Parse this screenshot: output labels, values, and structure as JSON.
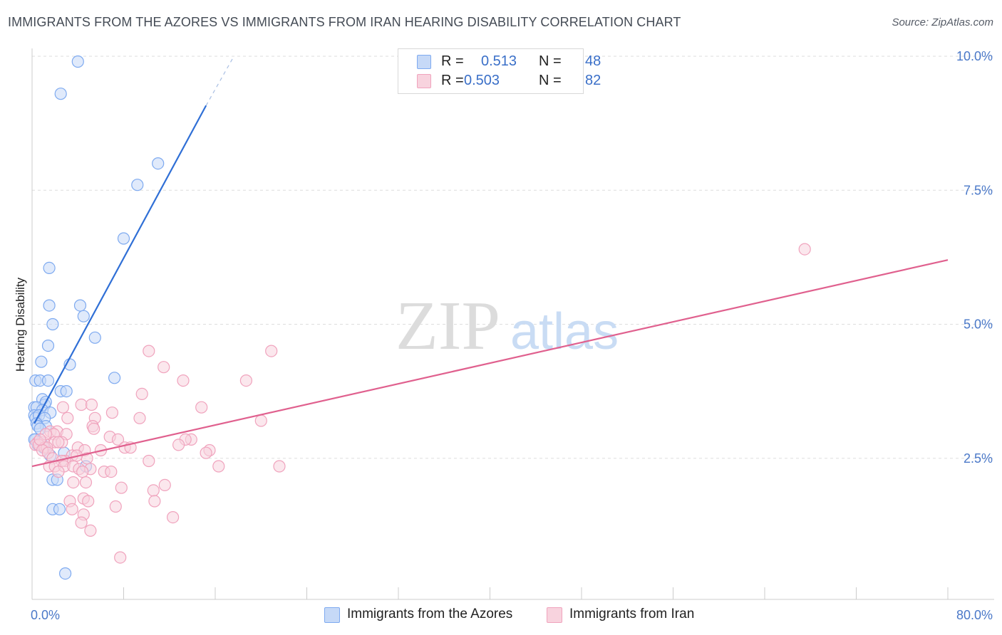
{
  "header": {
    "title": "IMMIGRANTS FROM THE AZORES VS IMMIGRANTS FROM IRAN HEARING DISABILITY CORRELATION CHART",
    "source": "Source: ZipAtlas.com"
  },
  "legend": {
    "r_label": "R =",
    "n_label": "N =",
    "items": [
      {
        "r": "0.513",
        "n": "48"
      },
      {
        "r": "0.503",
        "n": "82"
      }
    ]
  },
  "bottom_legend": {
    "items": [
      {
        "label": "Immigrants from the Azores"
      },
      {
        "label": "Immigrants from Iran"
      }
    ]
  },
  "watermark": {
    "part1": "ZIP",
    "part2": "atlas"
  },
  "chart_data": {
    "type": "scatter",
    "title": "IMMIGRANTS FROM THE AZORES VS IMMIGRANTS FROM IRAN HEARING DISABILITY CORRELATION CHART",
    "xlabel": "",
    "ylabel": "Hearing Disability",
    "xlim": [
      0,
      80
    ],
    "ylim": [
      0,
      10.5
    ],
    "x_tick_labels": {
      "min": "0.0%",
      "max": "80.0%"
    },
    "y_ticks": [
      {
        "value": 2.5,
        "label": "2.5%"
      },
      {
        "value": 5.0,
        "label": "5.0%"
      },
      {
        "value": 7.5,
        "label": "7.5%"
      },
      {
        "value": 10.0,
        "label": "10.0%"
      }
    ],
    "grid": true,
    "legend_position": "top-center",
    "series": [
      {
        "name": "Immigrants from the Azores",
        "color": "#7eaaf0",
        "fill": "#c6d9f7",
        "line_color": "#2f6fd6",
        "trend": {
          "x0": 0.2,
          "y0": 3.15,
          "x1": 15.2,
          "y1": 9.08,
          "dash_to_x": 17.5,
          "dash_to_y": 9.95
        },
        "points": [
          [
            4.0,
            9.9
          ],
          [
            2.5,
            9.3
          ],
          [
            11.0,
            8.0
          ],
          [
            9.2,
            7.6
          ],
          [
            8.0,
            6.6
          ],
          [
            1.5,
            6.05
          ],
          [
            1.5,
            5.35
          ],
          [
            4.2,
            5.35
          ],
          [
            4.5,
            5.15
          ],
          [
            1.8,
            5.0
          ],
          [
            5.5,
            4.75
          ],
          [
            1.4,
            4.6
          ],
          [
            0.8,
            4.3
          ],
          [
            3.3,
            4.25
          ],
          [
            7.2,
            4.0
          ],
          [
            0.3,
            3.95
          ],
          [
            0.7,
            3.95
          ],
          [
            1.4,
            3.95
          ],
          [
            2.5,
            3.75
          ],
          [
            3.0,
            3.75
          ],
          [
            0.2,
            3.45
          ],
          [
            0.9,
            3.6
          ],
          [
            1.1,
            3.5
          ],
          [
            1.2,
            3.55
          ],
          [
            0.4,
            3.45
          ],
          [
            0.9,
            3.4
          ],
          [
            1.6,
            3.35
          ],
          [
            0.2,
            3.3
          ],
          [
            0.3,
            3.25
          ],
          [
            0.6,
            3.3
          ],
          [
            1.1,
            3.25
          ],
          [
            0.4,
            3.15
          ],
          [
            1.2,
            3.1
          ],
          [
            0.5,
            3.1
          ],
          [
            0.7,
            3.05
          ],
          [
            0.3,
            2.85
          ],
          [
            0.8,
            2.8
          ],
          [
            0.5,
            2.75
          ],
          [
            1.0,
            2.7
          ],
          [
            2.8,
            2.6
          ],
          [
            1.6,
            2.55
          ],
          [
            4.7,
            2.35
          ],
          [
            1.8,
            2.1
          ],
          [
            2.2,
            2.1
          ],
          [
            1.8,
            1.55
          ],
          [
            2.4,
            1.55
          ],
          [
            2.9,
            0.35
          ],
          [
            0.2,
            2.85
          ]
        ]
      },
      {
        "name": "Immigrants from Iran",
        "color": "#f0a3bd",
        "fill": "#f8d3de",
        "line_color": "#e0608e",
        "trend": {
          "x0": 0.0,
          "y0": 2.35,
          "x1": 80.0,
          "y1": 6.2
        },
        "points": [
          [
            67.5,
            6.4
          ],
          [
            10.2,
            4.5
          ],
          [
            20.9,
            4.5
          ],
          [
            11.5,
            4.2
          ],
          [
            13.2,
            3.95
          ],
          [
            18.7,
            3.95
          ],
          [
            9.6,
            3.7
          ],
          [
            4.3,
            3.5
          ],
          [
            5.2,
            3.5
          ],
          [
            14.8,
            3.45
          ],
          [
            2.7,
            3.45
          ],
          [
            7.0,
            3.35
          ],
          [
            3.1,
            3.25
          ],
          [
            9.4,
            3.25
          ],
          [
            5.5,
            3.25
          ],
          [
            20.0,
            3.2
          ],
          [
            5.3,
            3.1
          ],
          [
            5.4,
            3.05
          ],
          [
            1.6,
            3.0
          ],
          [
            2.2,
            3.0
          ],
          [
            1.9,
            2.95
          ],
          [
            3.0,
            2.95
          ],
          [
            6.8,
            2.9
          ],
          [
            7.5,
            2.85
          ],
          [
            13.9,
            2.85
          ],
          [
            13.4,
            2.85
          ],
          [
            2.0,
            2.8
          ],
          [
            0.5,
            2.8
          ],
          [
            1.0,
            2.8
          ],
          [
            2.6,
            2.8
          ],
          [
            12.8,
            2.75
          ],
          [
            0.3,
            2.75
          ],
          [
            0.6,
            2.75
          ],
          [
            1.1,
            2.7
          ],
          [
            1.3,
            2.7
          ],
          [
            8.1,
            2.7
          ],
          [
            8.6,
            2.7
          ],
          [
            4.0,
            2.7
          ],
          [
            0.9,
            2.65
          ],
          [
            4.6,
            2.65
          ],
          [
            15.5,
            2.65
          ],
          [
            1.4,
            2.6
          ],
          [
            15.2,
            2.6
          ],
          [
            3.5,
            2.55
          ],
          [
            1.8,
            2.5
          ],
          [
            4.8,
            2.5
          ],
          [
            2.9,
            2.45
          ],
          [
            10.2,
            2.45
          ],
          [
            2.6,
            2.45
          ],
          [
            16.3,
            2.35
          ],
          [
            21.6,
            2.35
          ],
          [
            1.5,
            2.35
          ],
          [
            2.0,
            2.35
          ],
          [
            2.8,
            2.35
          ],
          [
            3.6,
            2.35
          ],
          [
            4.1,
            2.3
          ],
          [
            5.1,
            2.3
          ],
          [
            6.3,
            2.25
          ],
          [
            6.9,
            2.25
          ],
          [
            4.4,
            2.25
          ],
          [
            2.3,
            2.25
          ],
          [
            4.7,
            2.05
          ],
          [
            3.6,
            2.05
          ],
          [
            11.6,
            2.0
          ],
          [
            7.8,
            1.95
          ],
          [
            10.6,
            1.9
          ],
          [
            4.5,
            1.75
          ],
          [
            4.9,
            1.7
          ],
          [
            3.3,
            1.7
          ],
          [
            10.7,
            1.7
          ],
          [
            7.3,
            1.6
          ],
          [
            3.5,
            1.55
          ],
          [
            4.5,
            1.45
          ],
          [
            12.3,
            1.4
          ],
          [
            4.3,
            1.3
          ],
          [
            5.1,
            1.15
          ],
          [
            7.7,
            0.65
          ],
          [
            2.3,
            2.8
          ],
          [
            1.2,
            2.95
          ],
          [
            0.7,
            2.85
          ],
          [
            3.9,
            2.55
          ],
          [
            6.0,
            2.65
          ]
        ]
      }
    ]
  }
}
